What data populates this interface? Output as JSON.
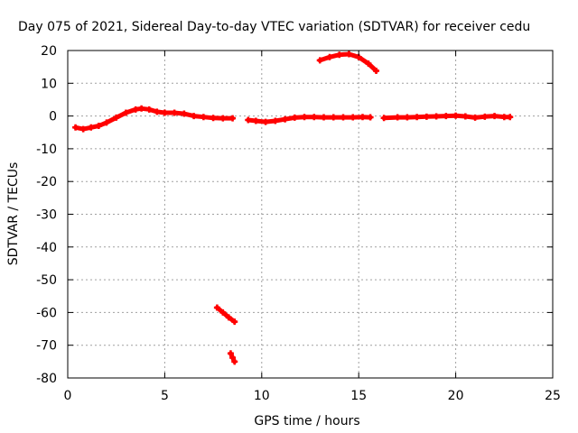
{
  "chart_data": {
    "type": "scatter",
    "title": "Day 075 of 2021, Sidereal Day-to-day VTEC variation (SDTVAR) for receiver cedu",
    "xlabel": "GPS time / hours",
    "ylabel": "SDTVAR / TECUs",
    "xlim": [
      0,
      25
    ],
    "ylim": [
      -80,
      20
    ],
    "xticks": [
      0,
      5,
      10,
      15,
      20,
      25
    ],
    "yticks": [
      20,
      10,
      0,
      -10,
      -20,
      -30,
      -40,
      -50,
      -60,
      -70,
      -80
    ],
    "xtick_labels": [
      "0",
      "5",
      "10",
      "15",
      "20",
      "25"
    ],
    "ytick_labels": [
      "20",
      "10",
      "0",
      "-10",
      "-20",
      "-30",
      "-40",
      "-50",
      "-60",
      "-70",
      "-80"
    ],
    "grid": true,
    "marker_color": "#ff0000",
    "series": [
      {
        "name": "main",
        "x": [
          0.4,
          0.8,
          1.2,
          1.6,
          2.0,
          2.5,
          3.0,
          3.5,
          3.8,
          4.2,
          4.6,
          5.0,
          5.5,
          6.0,
          6.5,
          7.0,
          7.5,
          8.0,
          8.5
        ],
        "y": [
          -3.5,
          -4.0,
          -3.5,
          -3.0,
          -2.0,
          -0.5,
          1.0,
          2.0,
          2.3,
          2.0,
          1.3,
          1.0,
          1.0,
          0.7,
          0.0,
          -0.3,
          -0.6,
          -0.7,
          -0.7
        ]
      },
      {
        "name": "segment-2",
        "x": [
          9.3,
          9.7,
          10.2,
          10.7,
          11.2,
          11.7,
          12.2,
          12.7,
          13.2,
          13.7,
          14.2,
          14.7,
          15.2,
          15.6
        ],
        "y": [
          -1.2,
          -1.5,
          -1.8,
          -1.5,
          -1.0,
          -0.5,
          -0.3,
          -0.3,
          -0.4,
          -0.4,
          -0.4,
          -0.4,
          -0.3,
          -0.4
        ]
      },
      {
        "name": "arc",
        "x": [
          13.0,
          13.5,
          14.0,
          14.5,
          15.0,
          15.5,
          15.9
        ],
        "y": [
          17.0,
          18.0,
          18.7,
          18.9,
          18.0,
          16.0,
          13.8
        ]
      },
      {
        "name": "segment-3",
        "x": [
          16.3,
          17.0,
          17.5,
          18.0,
          18.5,
          19.0,
          19.5,
          20.0,
          20.5,
          21.0,
          21.5,
          22.0,
          22.5,
          22.8
        ],
        "y": [
          -0.6,
          -0.4,
          -0.4,
          -0.3,
          -0.2,
          -0.1,
          0.0,
          0.1,
          -0.1,
          -0.5,
          -0.2,
          0.0,
          -0.3,
          -0.3
        ]
      },
      {
        "name": "dip-1",
        "x": [
          7.7,
          8.0,
          8.3,
          8.6
        ],
        "y": [
          -58.5,
          -60.0,
          -61.5,
          -62.8
        ]
      },
      {
        "name": "dip-2",
        "x": [
          8.4,
          8.5,
          8.6
        ],
        "y": [
          -72.5,
          -73.8,
          -75.0
        ]
      }
    ]
  }
}
